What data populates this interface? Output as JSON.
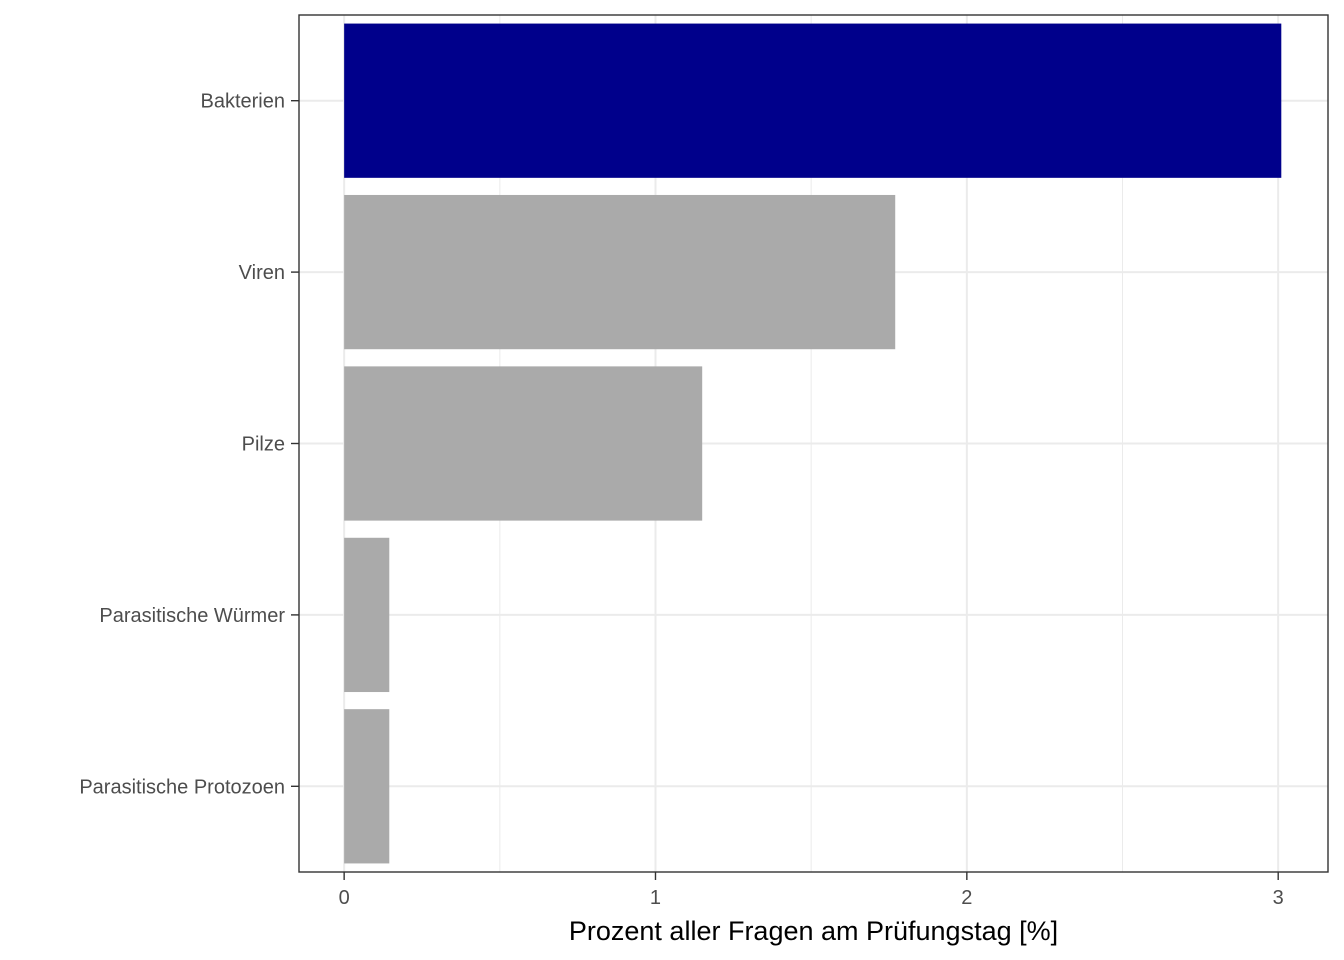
{
  "chart_data": {
    "type": "bar",
    "orientation": "horizontal",
    "categories": [
      "Bakterien",
      "Viren",
      "Pilze",
      "Parasitische Würmer",
      "Parasitische Protozoen"
    ],
    "values": [
      3.01,
      1.77,
      1.15,
      0.145,
      0.145
    ],
    "highlight_category": "Bakterien",
    "colors": {
      "highlight": "#00008B",
      "default": "#AAAAAA",
      "grid": "#EBEBEB",
      "panel_border": "#333333"
    },
    "xlabel": "Prozent aller Fragen am Prüfungstag [%]",
    "ylabel": "",
    "xlim": [
      -0.145,
      3.16
    ],
    "xticks": [
      0,
      1,
      2,
      3
    ],
    "grid": true,
    "legend": "none"
  }
}
